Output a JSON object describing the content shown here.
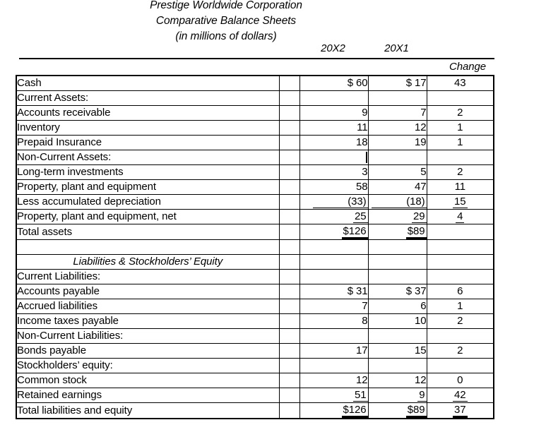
{
  "title": {
    "line1": "Prestige Worldwide Corporation",
    "line2": "Comparative Balance Sheets",
    "line3": "(in millions of dollars)"
  },
  "columns": {
    "year_20x2": "20X2",
    "year_20x1": "20X1",
    "change": "Change"
  },
  "rows": [
    {
      "label": "Cash",
      "type": "section",
      "v1": "$ 60",
      "v2": "$ 17",
      "chg": "43",
      "u": ""
    },
    {
      "label": "Current Assets:",
      "type": "section",
      "v1": "",
      "v2": "",
      "chg": "",
      "u": ""
    },
    {
      "label": "Accounts receivable",
      "type": "item",
      "v1": "9",
      "v2": "7",
      "chg": "2",
      "u": ""
    },
    {
      "label": "Inventory",
      "type": "item",
      "v1": "11",
      "v2": "12",
      "chg": "1",
      "u": ""
    },
    {
      "label": "Prepaid Insurance",
      "type": "item",
      "v1": "18",
      "v2": "19",
      "chg": "1",
      "u": ""
    },
    {
      "label": "Non-Current Assets:",
      "type": "section",
      "v1": "",
      "v2": "",
      "chg": "",
      "u": "",
      "cursor": true
    },
    {
      "label": "Long-term investments",
      "type": "item",
      "v1": "3",
      "v2": "5",
      "chg": "2",
      "u": ""
    },
    {
      "label": "Property, plant and equipment",
      "type": "item",
      "v1": "58",
      "v2": "47",
      "chg": "11",
      "u": ""
    },
    {
      "label": "Less accumulated depreciation",
      "type": "item",
      "v1": "(33)",
      "v2": "(18)",
      "chg": "15",
      "u": "x"
    },
    {
      "label": "Property, plant and equipment, net",
      "type": "item",
      "v1": "25",
      "v2": "29",
      "chg": "4",
      "u": "s"
    },
    {
      "label": "Total assets",
      "type": "section",
      "v1": "$126",
      "v2": "$89",
      "chg": "",
      "u": "t"
    },
    {
      "label": "",
      "type": "blank",
      "v1": "",
      "v2": "",
      "chg": "",
      "u": ""
    },
    {
      "label": "Liabilities & Stockholders’ Equity",
      "type": "citalic",
      "v1": "",
      "v2": "",
      "chg": "",
      "u": ""
    },
    {
      "label": "Current Liabilities:",
      "type": "section",
      "v1": "",
      "v2": "",
      "chg": "",
      "u": ""
    },
    {
      "label": "Accounts payable",
      "type": "item",
      "v1": "$ 31",
      "v2": "$ 37",
      "chg": "6",
      "u": ""
    },
    {
      "label": "Accrued liabilities",
      "type": "item",
      "v1": "7",
      "v2": "6",
      "chg": "1",
      "u": ""
    },
    {
      "label": "Income taxes payable",
      "type": "item",
      "v1": "8",
      "v2": "10",
      "chg": "2",
      "u": ""
    },
    {
      "label": "Non-Current Liabilities:",
      "type": "section",
      "v1": "",
      "v2": "",
      "chg": "",
      "u": ""
    },
    {
      "label": "Bonds payable",
      "type": "item",
      "v1": "17",
      "v2": "15",
      "chg": "2",
      "u": ""
    },
    {
      "label": "Stockholders’ equity:",
      "type": "section",
      "v1": "",
      "v2": "",
      "chg": "",
      "u": ""
    },
    {
      "label": "Common stock",
      "type": "item",
      "v1": "12",
      "v2": "12",
      "chg": "0",
      "u": ""
    },
    {
      "label": "Retained earnings",
      "type": "item",
      "v1": "51",
      "v2": "9",
      "chg": "42",
      "u": "s"
    },
    {
      "label": "Total liabilities and equity",
      "type": "section",
      "v1": "$126",
      "v2": "$89",
      "chg": "37",
      "u": "t"
    }
  ]
}
